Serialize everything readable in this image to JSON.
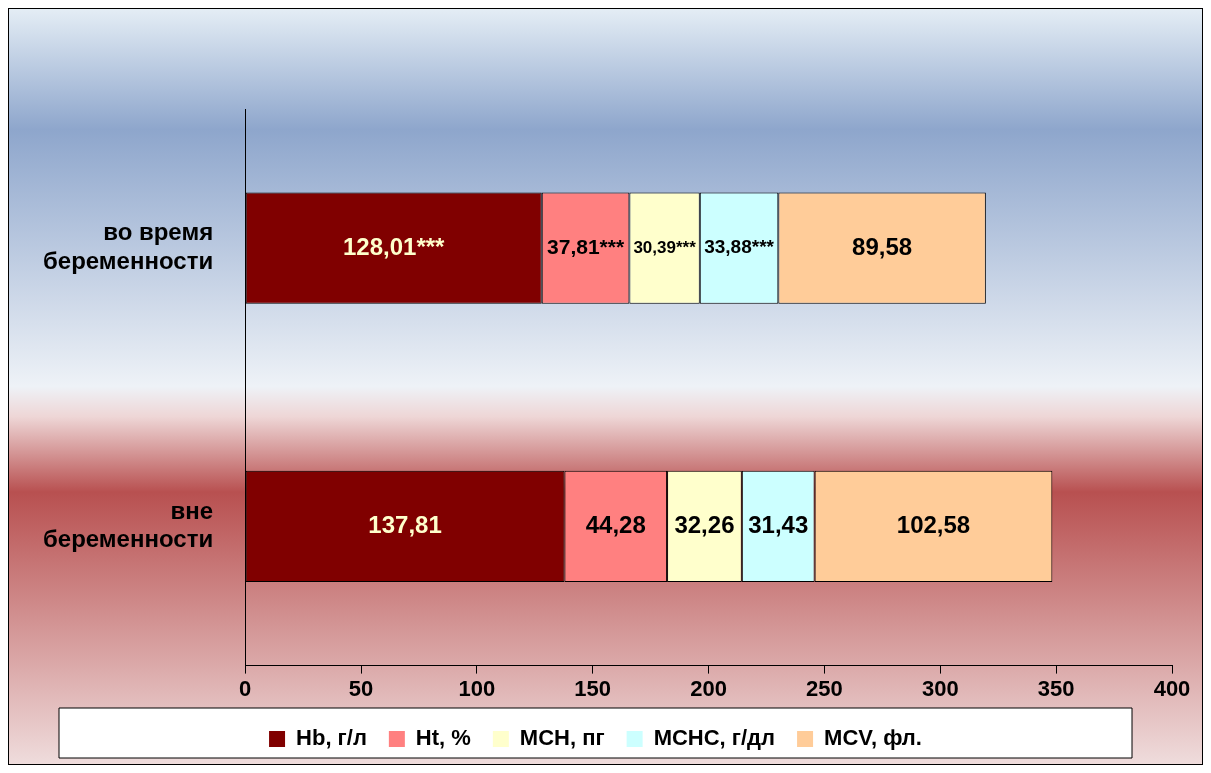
{
  "chart_data": {
    "type": "bar",
    "orientation": "horizontal",
    "stacked": true,
    "categories": [
      "во время беременности",
      "вне беременности"
    ],
    "series": [
      {
        "name": "Hb, г/л",
        "color": "#800000",
        "values": [
          128.01,
          137.81
        ],
        "value_labels": [
          "128,01***",
          "137,81"
        ]
      },
      {
        "name": "Ht, %",
        "color": "#ff8080",
        "values": [
          37.81,
          44.28
        ],
        "value_labels": [
          "37,81***",
          "44,28"
        ]
      },
      {
        "name": "MCH, пг",
        "color": "#ffffcc",
        "values": [
          30.39,
          32.26
        ],
        "value_labels": [
          "30,39***",
          "32,26"
        ]
      },
      {
        "name": "MCHC, г/дл",
        "color": "#ccffff",
        "values": [
          33.88,
          31.43
        ],
        "value_labels": [
          "33,88***",
          "31,43"
        ]
      },
      {
        "name": "MCV, фл.",
        "color": "#ffcc99",
        "values": [
          89.58,
          102.58
        ],
        "value_labels": [
          "89,58",
          "102,58"
        ]
      }
    ],
    "xlim": [
      0,
      400
    ],
    "xticks": [
      0,
      50,
      100,
      150,
      200,
      250,
      300,
      350,
      400
    ],
    "grid": false,
    "legend": "bottom"
  }
}
